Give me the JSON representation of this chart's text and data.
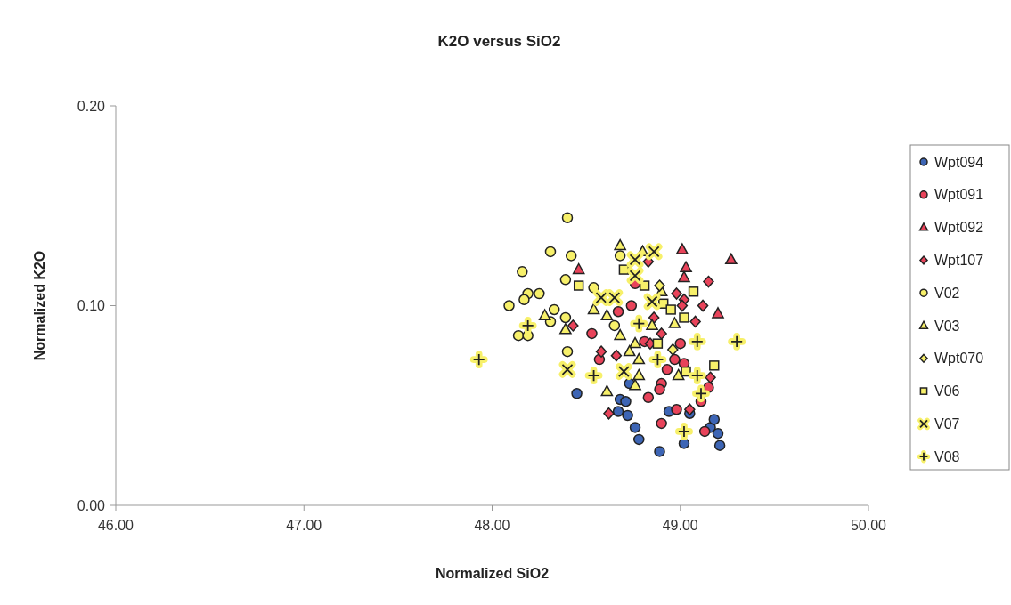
{
  "chart_data": {
    "type": "scatter",
    "title": "K2O versus SiO2",
    "xlabel": "Normalized SiO2",
    "ylabel": "Normalized K2O",
    "xlim": [
      46,
      50
    ],
    "ylim": [
      0,
      0.2
    ],
    "xticks": [
      {
        "value": 46,
        "label": "46.00"
      },
      {
        "value": 47,
        "label": "47.00"
      },
      {
        "value": 48,
        "label": "48.00"
      },
      {
        "value": 49,
        "label": "49.00"
      },
      {
        "value": 50,
        "label": "50.00"
      }
    ],
    "yticks": [
      {
        "value": 0,
        "label": "0.00"
      },
      {
        "value": 0.1,
        "label": "0.10"
      },
      {
        "value": 0.2,
        "label": "0.20"
      }
    ],
    "grid": false,
    "legend": "right",
    "series": [
      {
        "name": "Wpt094",
        "color": "#3d65b5",
        "marker": "circle",
        "x": [
          48.45,
          48.68,
          48.71,
          48.67,
          48.72,
          48.73,
          48.76,
          48.78,
          48.89,
          48.94,
          49.05,
          49.02,
          49.16,
          49.18,
          49.2,
          49.21
        ],
        "values": [
          0.056,
          0.053,
          0.052,
          0.047,
          0.045,
          0.061,
          0.039,
          0.033,
          0.027,
          0.047,
          0.046,
          0.031,
          0.039,
          0.043,
          0.036,
          0.03
        ]
      },
      {
        "name": "Wpt091",
        "color": "#e8435a",
        "marker": "circle",
        "x": [
          49.0,
          48.97,
          49.02,
          48.93,
          48.9,
          48.89,
          48.83,
          48.98,
          48.9,
          49.13,
          49.11,
          49.15,
          48.81,
          48.57,
          48.53,
          48.67,
          48.74,
          48.76
        ],
        "values": [
          0.081,
          0.073,
          0.071,
          0.068,
          0.061,
          0.058,
          0.054,
          0.048,
          0.041,
          0.037,
          0.052,
          0.059,
          0.082,
          0.073,
          0.086,
          0.097,
          0.1,
          0.111
        ]
      },
      {
        "name": "Wpt092",
        "color": "#e8435a",
        "marker": "triangle",
        "x": [
          48.46,
          49.01,
          49.27,
          49.03,
          49.02,
          49.2
        ],
        "values": [
          0.118,
          0.128,
          0.123,
          0.119,
          0.114,
          0.096
        ]
      },
      {
        "name": "Wpt107",
        "color": "#e8435a",
        "marker": "diamond",
        "x": [
          48.83,
          49.15,
          48.98,
          49.02,
          49.01,
          49.12,
          48.86,
          49.08,
          48.43,
          48.58,
          48.62,
          49.05,
          48.66,
          49.16,
          48.84,
          48.9
        ],
        "values": [
          0.122,
          0.112,
          0.106,
          0.103,
          0.1,
          0.1,
          0.094,
          0.092,
          0.09,
          0.077,
          0.046,
          0.048,
          0.075,
          0.064,
          0.081,
          0.086
        ]
      },
      {
        "name": "V02",
        "color": "#f7f06a",
        "marker": "circle",
        "x": [
          48.4,
          48.31,
          48.42,
          48.16,
          48.39,
          48.19,
          48.25,
          48.17,
          48.09,
          48.33,
          48.31,
          48.39,
          48.54,
          48.14,
          48.19,
          48.4,
          48.68,
          48.65
        ],
        "values": [
          0.144,
          0.127,
          0.125,
          0.117,
          0.113,
          0.106,
          0.106,
          0.103,
          0.1,
          0.098,
          0.092,
          0.094,
          0.109,
          0.085,
          0.085,
          0.077,
          0.125,
          0.09
        ]
      },
      {
        "name": "V03",
        "color": "#f7f06a",
        "marker": "triangle",
        "x": [
          48.28,
          48.39,
          48.54,
          48.61,
          48.68,
          48.8,
          48.9,
          48.68,
          48.85,
          48.97,
          48.61,
          48.76,
          48.73,
          48.78,
          48.78,
          48.99,
          48.76
        ],
        "values": [
          0.095,
          0.088,
          0.098,
          0.095,
          0.13,
          0.127,
          0.107,
          0.085,
          0.09,
          0.091,
          0.057,
          0.081,
          0.077,
          0.073,
          0.065,
          0.065,
          0.06
        ]
      },
      {
        "name": "Wpt070",
        "color": "#f7f06a",
        "marker": "diamond",
        "x": [
          48.96,
          48.89
        ],
        "values": [
          0.078,
          0.11
        ]
      },
      {
        "name": "V06",
        "color": "#f7f06a",
        "marker": "square",
        "x": [
          48.46,
          48.7,
          48.81,
          49.07,
          48.91,
          48.95,
          49.02,
          48.88,
          49.03,
          49.18
        ],
        "values": [
          0.11,
          0.118,
          0.11,
          0.107,
          0.101,
          0.098,
          0.094,
          0.081,
          0.067,
          0.07
        ]
      },
      {
        "name": "V07",
        "color": "#f7f06a",
        "marker": "x",
        "x": [
          48.58,
          48.65,
          48.76,
          48.86,
          48.76,
          48.85,
          48.4,
          48.7
        ],
        "values": [
          0.104,
          0.104,
          0.123,
          0.127,
          0.115,
          0.102,
          0.068,
          0.067
        ]
      },
      {
        "name": "V08",
        "color": "#f7f06a",
        "marker": "cross",
        "x": [
          47.93,
          48.54,
          48.19,
          48.78,
          49.09,
          49.3,
          48.88,
          49.09,
          49.11,
          49.02
        ],
        "values": [
          0.073,
          0.065,
          0.09,
          0.091,
          0.082,
          0.082,
          0.073,
          0.065,
          0.056,
          0.037
        ]
      }
    ]
  }
}
